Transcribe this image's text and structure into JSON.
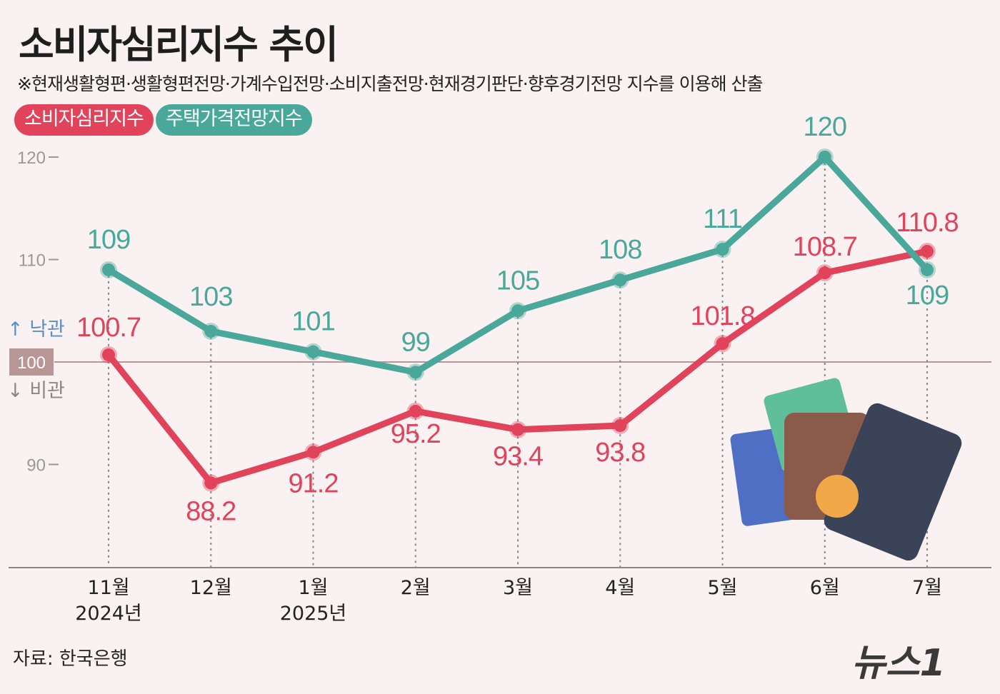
{
  "header": {
    "title": "소비자심리지수 추이",
    "subtitle": "※현재생활형편·생활형편전망·가계수입전망·소비지출전망·현재경기판단·향후경기전망 지수를 이용해 산출"
  },
  "source": "자료: 한국은행",
  "logo": "뉴스1",
  "chart_data": {
    "type": "line",
    "categories": [
      "11월\n2024년",
      "12월",
      "1월\n2025년",
      "2월",
      "3월",
      "4월",
      "5월",
      "6월",
      "7월"
    ],
    "x_tick_labels": [
      [
        "11월",
        "2024년"
      ],
      [
        "12월",
        ""
      ],
      [
        "1월",
        "2025년"
      ],
      [
        "2월",
        ""
      ],
      [
        "3월",
        ""
      ],
      [
        "4월",
        ""
      ],
      [
        "5월",
        ""
      ],
      [
        "6월",
        ""
      ],
      [
        "7월",
        ""
      ]
    ],
    "y_ticks": [
      "120",
      "110",
      "100",
      "90"
    ],
    "ylim": [
      80,
      124
    ],
    "baseline": {
      "value": "100",
      "up_label": "↑ 낙관",
      "down_label": "↓ 비관"
    },
    "legend_placement": "top-left",
    "series": [
      {
        "name": "소비자심리지수",
        "color": "#e0435a",
        "values": [
          100.7,
          88.2,
          91.2,
          95.2,
          93.4,
          93.8,
          101.8,
          108.7,
          110.8
        ],
        "labels": [
          "100.7",
          "88.2",
          "91.2",
          "95.2",
          "93.4",
          "93.8",
          "101.8",
          "108.7",
          "110.8"
        ]
      },
      {
        "name": "주택가격전망지수",
        "color": "#4aa89a",
        "values": [
          109,
          103,
          101,
          99,
          105,
          108,
          111,
          120,
          109
        ],
        "labels": [
          "109",
          "103",
          "101",
          "99",
          "105",
          "108",
          "111",
          "120",
          "109"
        ]
      }
    ]
  }
}
